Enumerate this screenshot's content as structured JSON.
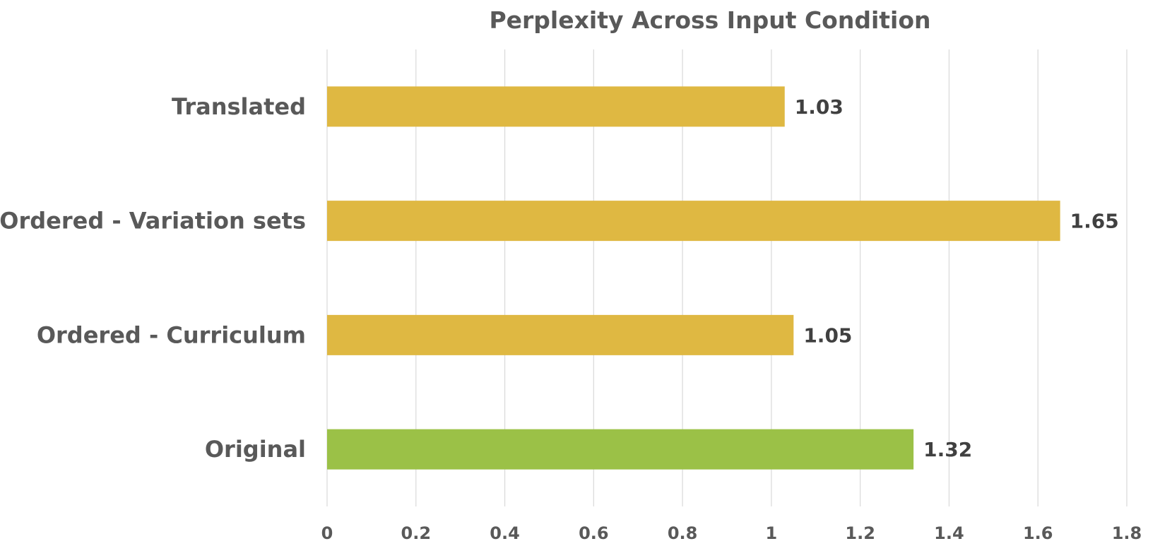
{
  "chart_data": {
    "type": "bar",
    "orientation": "horizontal",
    "title": "Perplexity Across Input Condition",
    "xlabel": "",
    "ylabel": "",
    "categories": [
      "Translated",
      "Ordered - Variation sets",
      "Ordered - Curriculum",
      "Original"
    ],
    "values": [
      1.03,
      1.65,
      1.05,
      1.32
    ],
    "data_labels": [
      "1.03",
      "1.65",
      "1.05",
      "1.32"
    ],
    "bar_colors": [
      "#DFB842",
      "#DFB842",
      "#DFB842",
      "#9BC147"
    ],
    "xlim": [
      0,
      1.8
    ],
    "x_ticks": [
      0,
      0.2,
      0.4,
      0.6,
      0.8,
      1,
      1.2,
      1.4,
      1.6,
      1.8
    ],
    "x_tick_labels": [
      "0",
      "0.2",
      "0.4",
      "0.6",
      "0.8",
      "1",
      "1.2",
      "1.4",
      "1.6",
      "1.8"
    ],
    "grid": true,
    "legend": "none",
    "colors": {
      "highlight": "#DFB842",
      "baseline": "#9BC147",
      "text": "#595959",
      "data_label": "#404040",
      "grid": "#D9D9D9"
    }
  }
}
